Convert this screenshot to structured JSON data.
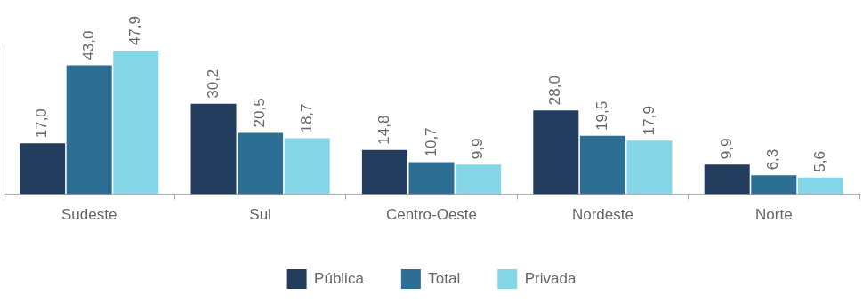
{
  "chart_data": {
    "type": "bar",
    "categories": [
      "Sudeste",
      "Sul",
      "Centro-Oeste",
      "Nordeste",
      "Norte"
    ],
    "series": [
      {
        "name": "Pública",
        "color": "#233d5e",
        "values": [
          17.0,
          30.2,
          14.8,
          28.0,
          9.9
        ],
        "value_labels": [
          "17,0",
          "30,2",
          "14,8",
          "28,0",
          "9,9"
        ]
      },
      {
        "name": "Total",
        "color": "#2d6e94",
        "values": [
          43.0,
          20.5,
          10.7,
          19.5,
          6.3
        ],
        "value_labels": [
          "43,0",
          "20,5",
          "10,7",
          "19,5",
          "6,3"
        ]
      },
      {
        "name": "Privada",
        "color": "#84d5e6",
        "values": [
          47.9,
          18.7,
          9.9,
          17.9,
          5.6
        ],
        "value_labels": [
          "47,9",
          "18,7",
          "9,9",
          "17,9",
          "5,6"
        ]
      }
    ],
    "ylim": [
      0,
      50
    ],
    "data_labels": true,
    "legend": "bottom",
    "tick_labels": "x",
    "grid": false
  }
}
